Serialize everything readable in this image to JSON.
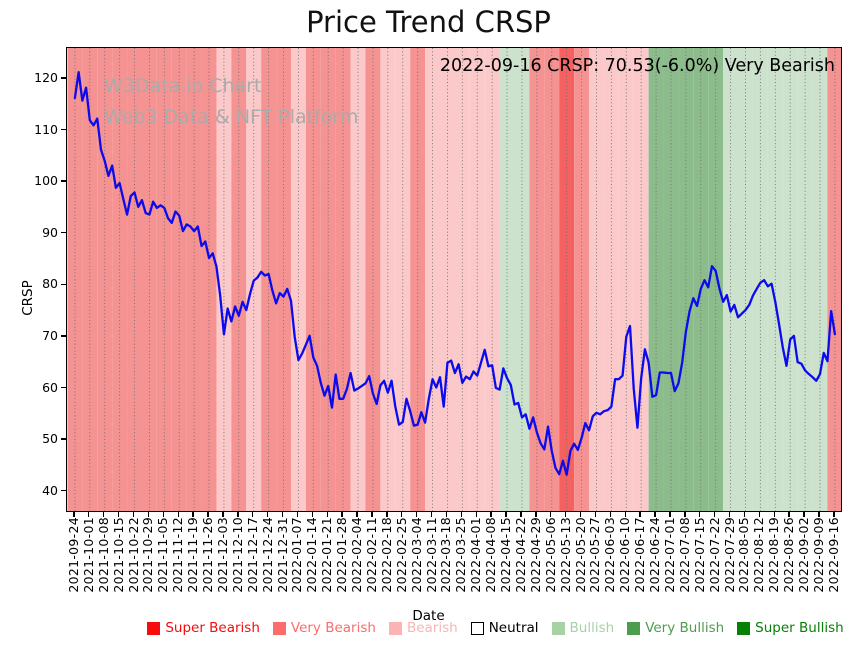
{
  "title": "Price Trend CRSP",
  "annotation": "2022-09-16 CRSP: 70.53(-6.0%) Very Bearish",
  "watermark": {
    "line1": "W3Data.io Chart",
    "line2": "Web3 Data & NFT Platform"
  },
  "chart_data": {
    "type": "line",
    "title": "Price Trend CRSP",
    "xlabel": "Date",
    "ylabel": "CRSP",
    "ylim": [
      36,
      126
    ],
    "yticks": [
      40,
      50,
      60,
      70,
      80,
      90,
      100,
      110,
      120
    ],
    "grid": "vertical-dotted",
    "legend_position": "bottom",
    "line_color": "#0b0bee",
    "x_tick_labels": [
      "2021-09-24",
      "2021-10-01",
      "2021-10-08",
      "2021-10-15",
      "2021-10-22",
      "2021-10-29",
      "2021-11-05",
      "2021-11-12",
      "2021-11-19",
      "2021-11-26",
      "2021-12-03",
      "2021-12-10",
      "2021-12-17",
      "2021-12-24",
      "2021-12-31",
      "2022-01-07",
      "2022-01-14",
      "2022-01-21",
      "2022-01-28",
      "2022-02-04",
      "2022-02-11",
      "2022-02-18",
      "2022-02-25",
      "2022-03-04",
      "2022-03-11",
      "2022-03-18",
      "2022-03-25",
      "2022-04-01",
      "2022-04-08",
      "2022-04-15",
      "2022-04-22",
      "2022-04-29",
      "2022-05-06",
      "2022-05-13",
      "2022-05-20",
      "2022-05-27",
      "2022-06-03",
      "2022-06-10",
      "2022-06-17",
      "2022-06-24",
      "2022-07-01",
      "2022-07-08",
      "2022-07-15",
      "2022-07-22",
      "2022-07-29",
      "2022-08-05",
      "2022-08-12",
      "2022-08-19",
      "2022-08-26",
      "2022-09-02",
      "2022-09-09",
      "2022-09-16"
    ],
    "points_per_week": 4,
    "series": [
      {
        "name": "CRSP",
        "values": [
          116.3,
          121.3,
          115.8,
          118.3,
          112.0,
          111.0,
          112.3,
          106.3,
          104.1,
          101.2,
          103.2,
          98.9,
          99.8,
          96.7,
          93.7,
          97.3,
          98.0,
          95.2,
          96.5,
          94.0,
          93.7,
          96.2,
          95.0,
          95.5,
          95.0,
          93.0,
          92.1,
          94.3,
          93.5,
          90.5,
          91.8,
          91.4,
          90.5,
          91.4,
          87.6,
          88.5,
          85.3,
          86.2,
          83.6,
          78.0,
          70.5,
          75.5,
          73.0,
          75.9,
          74.1,
          76.8,
          75.2,
          78.3,
          80.9,
          81.5,
          82.6,
          81.9,
          82.2,
          79.0,
          76.5,
          78.5,
          77.8,
          79.3,
          77.0,
          70.0,
          65.5,
          66.8,
          68.5,
          70.2,
          66.0,
          64.4,
          61.1,
          58.6,
          60.5,
          56.3,
          62.7,
          58.0,
          58.0,
          59.9,
          63.0,
          59.6,
          60.0,
          60.5,
          61.0,
          62.4,
          59.0,
          57.0,
          60.6,
          61.5,
          59.2,
          61.5,
          56.5,
          53.0,
          53.5,
          58.0,
          55.6,
          52.8,
          53.0,
          55.4,
          53.4,
          58.0,
          61.8,
          60.2,
          62.2,
          56.5,
          65.0,
          65.4,
          63.0,
          64.7,
          61.1,
          62.3,
          61.8,
          63.3,
          62.5,
          65.0,
          67.5,
          64.3,
          64.5,
          60.1,
          59.8,
          63.9,
          62.0,
          60.7,
          56.9,
          57.2,
          54.4,
          55.0,
          52.2,
          54.4,
          51.5,
          49.4,
          48.2,
          52.6,
          47.9,
          44.6,
          43.4,
          46.0,
          43.3,
          47.9,
          49.3,
          48.1,
          50.4,
          53.3,
          51.9,
          54.6,
          55.3,
          55.0,
          55.6,
          55.8,
          56.5,
          61.8,
          61.8,
          62.5,
          70.0,
          72.1,
          60.0,
          52.4,
          62.0,
          67.6,
          65.0,
          58.4,
          58.7,
          63.1,
          63.1,
          63.0,
          63.0,
          59.5,
          61.0,
          65.0,
          71.0,
          75.0,
          77.5,
          76.0,
          79.3,
          81.0,
          79.6,
          83.7,
          82.8,
          79.4,
          76.8,
          78.1,
          74.9,
          76.2,
          73.8,
          74.5,
          75.2,
          76.2,
          78.0,
          79.3,
          80.5,
          81.0,
          79.8,
          80.3,
          76.8,
          72.5,
          68.0,
          64.4,
          69.5,
          70.2,
          65.1,
          64.8,
          63.5,
          62.8,
          62.2,
          61.5,
          62.8,
          66.9,
          65.3,
          75.0,
          70.53
        ]
      }
    ],
    "last_point": {
      "date": "2022-09-16",
      "value": 70.53,
      "change_pct": -6.0,
      "sentiment": "Very Bearish"
    },
    "sentiment_bands_per_week": [
      "very_bearish",
      "very_bearish",
      "very_bearish",
      "very_bearish",
      "very_bearish",
      "very_bearish",
      "very_bearish",
      "very_bearish",
      "very_bearish",
      "very_bearish",
      "bearish",
      "very_bearish",
      "bearish",
      "very_bearish",
      "very_bearish",
      "bearish",
      "very_bearish",
      "very_bearish",
      "very_bearish",
      "bearish",
      "very_bearish",
      "bearish",
      "bearish",
      "very_bearish",
      "bearish",
      "bearish",
      "bearish",
      "bearish",
      "bearish",
      "bullish",
      "bullish",
      "very_bearish",
      "very_bearish",
      "super_bearish",
      "very_bearish",
      "bearish",
      "bearish",
      "bearish",
      "bearish",
      "very_bullish",
      "very_bullish",
      "very_bullish",
      "very_bullish",
      "very_bullish",
      "bullish",
      "bullish",
      "bullish",
      "bullish",
      "bullish",
      "bullish",
      "bullish",
      "very_bearish"
    ],
    "band_colors": {
      "super_bearish": "#f56060",
      "very_bearish": "#f59292",
      "bearish": "#fbc9c9",
      "neutral": "#ffffff",
      "bullish": "#cde2cd",
      "very_bullish": "#8cbc8c",
      "super_bullish": "#2e8b2e"
    },
    "legend": [
      {
        "label": "Super Bearish",
        "color": "#f60c0c",
        "text_color": "#f60c0c",
        "border": false
      },
      {
        "label": "Very Bearish",
        "color": "#fb6d6d",
        "text_color": "#fb6d6d",
        "border": false
      },
      {
        "label": "Bearish",
        "color": "#fbb3b3",
        "text_color": "#fbb3b3",
        "border": false
      },
      {
        "label": "Neutral",
        "color": "#ffffff",
        "text_color": "#000000",
        "border": true
      },
      {
        "label": "Bullish",
        "color": "#a6d2a6",
        "text_color": "#a6d2a6",
        "border": false
      },
      {
        "label": "Very Bullish",
        "color": "#4e9d4e",
        "text_color": "#4e9d4e",
        "border": false
      },
      {
        "label": "Super Bullish",
        "color": "#078007",
        "text_color": "#078007",
        "border": false
      }
    ]
  }
}
